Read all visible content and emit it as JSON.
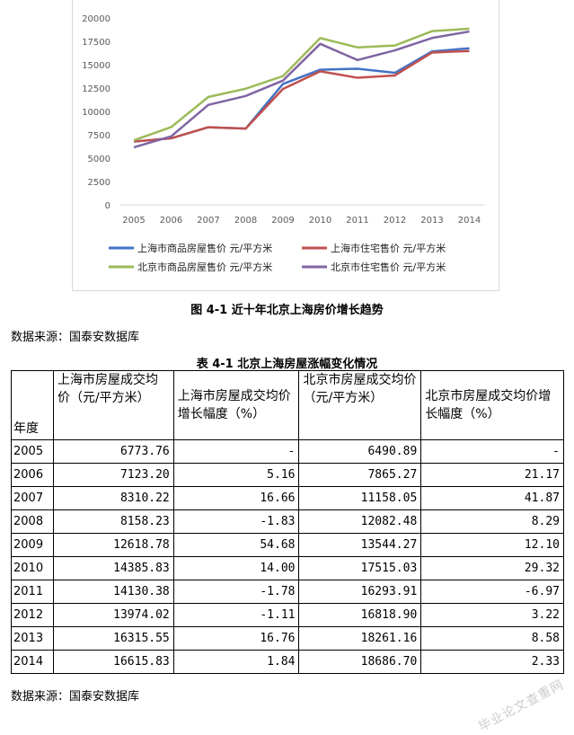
{
  "chart_data": {
    "type": "line",
    "x": [
      "2005",
      "2006",
      "2007",
      "2008",
      "2009",
      "2010",
      "2011",
      "2012",
      "2013",
      "2014"
    ],
    "ylim": [
      0,
      20000
    ],
    "yticks": [
      "0",
      "2500",
      "5000",
      "7500",
      "10000",
      "12500",
      "15000",
      "17500",
      "20000"
    ],
    "grid": false,
    "legend_position": "bottom",
    "series": [
      {
        "name": "上海市商品房屋售价 元/平方米",
        "color": "#4472c4",
        "values": [
          6773,
          7123,
          8310,
          8158,
          12940,
          14464,
          14571,
          14130,
          16420,
          16760
        ]
      },
      {
        "name": "上海市住宅售价 元/平方米",
        "color": "#c0504d",
        "values": [
          6773,
          7123,
          8310,
          8158,
          12400,
          14290,
          13600,
          13850,
          16300,
          16470
        ]
      },
      {
        "name": "北京市商品房屋售价 元/平方米",
        "color": "#9bbb59",
        "values": [
          6900,
          8320,
          11550,
          12430,
          13780,
          17850,
          16850,
          17050,
          18590,
          18850
        ]
      },
      {
        "name": "北京市住宅售价 元/平方米",
        "color": "#8064a2",
        "values": [
          6160,
          7330,
          10700,
          11650,
          13300,
          17230,
          15500,
          16530,
          17860,
          18550
        ]
      }
    ]
  },
  "figure_caption": "图 4-1 近十年北京上海房价增长趋势",
  "source_1": "数据来源：国泰安数据库",
  "table_caption": "表 4-1 北京上海房屋涨幅变化情况",
  "table": {
    "headers": [
      "年度",
      "上海市房屋成交均价（元/平方米）",
      "上海市房屋成交均价增长幅度（%）",
      "北京市房屋成交均价（元/平方米）",
      "北京市房屋成交均价增长幅度（%）"
    ],
    "rows": [
      [
        "2005",
        "6773.76",
        "-",
        "6490.89",
        "-"
      ],
      [
        "2006",
        "7123.20",
        "5.16",
        "7865.27",
        "21.17"
      ],
      [
        "2007",
        "8310.22",
        "16.66",
        "11158.05",
        "41.87"
      ],
      [
        "2008",
        "8158.23",
        "-1.83",
        "12082.48",
        "8.29"
      ],
      [
        "2009",
        "12618.78",
        "54.68",
        "13544.27",
        "12.10"
      ],
      [
        "2010",
        "14385.83",
        "14.00",
        "17515.03",
        "29.32"
      ],
      [
        "2011",
        "14130.38",
        "-1.78",
        "16293.91",
        "-6.97"
      ],
      [
        "2012",
        "13974.02",
        "-1.11",
        "16818.90",
        "3.22"
      ],
      [
        "2013",
        "16315.55",
        "16.76",
        "18261.16",
        "8.58"
      ],
      [
        "2014",
        "16615.83",
        "1.84",
        "18686.70",
        "2.33"
      ]
    ]
  },
  "source_2": "数据来源：国泰安数据库",
  "watermark": "毕业论文查重网"
}
